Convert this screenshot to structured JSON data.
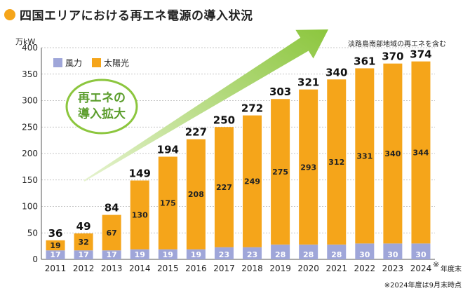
{
  "title": "四国エリアにおける再エネ電源の導入状況",
  "unit": "万kW",
  "note_top": "淡路島南部地域の再エネを含む",
  "note_bottom": "※2024年度は9月末時点",
  "x_suffix": "年度末",
  "x_mark": "※",
  "callout": {
    "line1": "再エネの",
    "line2": "導入拡大"
  },
  "colors": {
    "wind": "#9fa6d9",
    "solar": "#f5a51a",
    "arrow": "#8cc63e",
    "callout_border": "#8cc63e",
    "callout_text": "#5a9c2b"
  },
  "chart_data": {
    "type": "bar",
    "stacked": true,
    "categories": [
      "2011",
      "2012",
      "2013",
      "2014",
      "2015",
      "2016",
      "2017",
      "2018",
      "2019",
      "2020",
      "2021",
      "2022",
      "2023",
      "2024"
    ],
    "series": [
      {
        "name": "風力",
        "values": [
          17,
          17,
          17,
          19,
          19,
          19,
          23,
          23,
          28,
          28,
          28,
          30,
          30,
          30
        ]
      },
      {
        "name": "太陽光",
        "values": [
          19,
          32,
          67,
          130,
          175,
          208,
          227,
          249,
          275,
          293,
          312,
          331,
          340,
          344
        ]
      }
    ],
    "totals": [
      36,
      49,
      84,
      149,
      194,
      227,
      250,
      272,
      303,
      321,
      340,
      361,
      370,
      374
    ],
    "ylim": [
      0,
      400
    ],
    "yticks": [
      0,
      50,
      100,
      150,
      200,
      250,
      300,
      350,
      400
    ],
    "grid": true,
    "legend_position": "top-left"
  }
}
